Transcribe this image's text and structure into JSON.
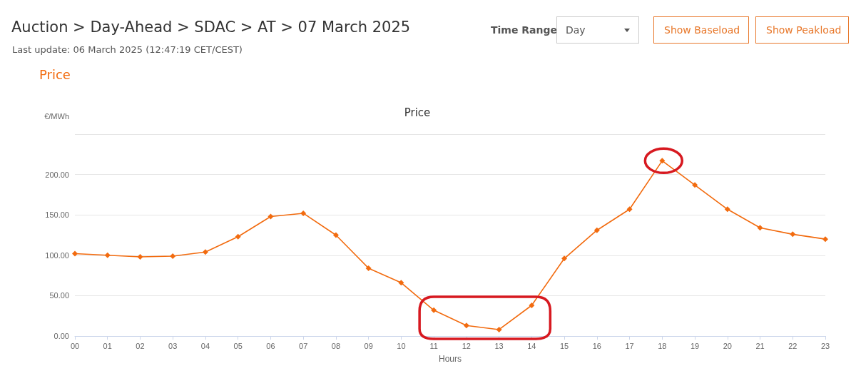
{
  "chart_data": {
    "type": "line",
    "title": "Auction > Day-Ahead > SDAC > AT > 07 March 2025",
    "subtitle": "Last update: 06 March 2025 (12:47:19 CET/CEST)",
    "annotations": [
      "Price",
      "Price",
      "Time Range",
      "Day",
      "Show Baseload",
      "Show Peakload"
    ],
    "xlabel": "Hours",
    "ylabel": "€/MWh",
    "categories": [
      "00",
      "01",
      "02",
      "03",
      "04",
      "05",
      "06",
      "07",
      "08",
      "09",
      "10",
      "11",
      "12",
      "13",
      "14",
      "15",
      "16",
      "17",
      "18",
      "19",
      "20",
      "21",
      "22",
      "23"
    ],
    "series": [
      {
        "color": "#f26b0f",
        "values": [
          102,
          100,
          98,
          99,
          104,
          123,
          148,
          152,
          125,
          84,
          66,
          32,
          13,
          8,
          38,
          96,
          131,
          157,
          217,
          187,
          157,
          134,
          126,
          120
        ]
      }
    ],
    "ylim": [
      0,
      250
    ],
    "yticks": [
      {
        "value": 0,
        "label": "0.00"
      },
      {
        "value": 50,
        "label": "50.00"
      },
      {
        "value": 100,
        "label": "100.00"
      },
      {
        "value": 150,
        "label": "150.00"
      },
      {
        "value": 200,
        "label": "200.00"
      },
      {
        "value": 250,
        "label": null
      }
    ],
    "grid": "y",
    "marker": "diamond",
    "line_style": "solid"
  }
}
